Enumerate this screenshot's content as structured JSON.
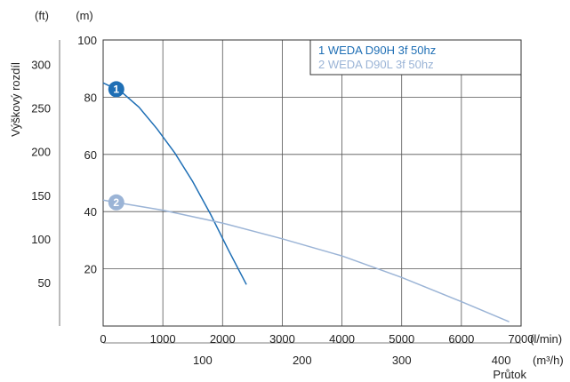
{
  "chart_data": {
    "type": "line",
    "ylabel": "Výškový rozdíl",
    "xlabel": "Průtok",
    "y_units": {
      "primary": "(m)",
      "secondary": "(ft)"
    },
    "x_units": {
      "primary": "(l/min)",
      "secondary": "(m³/h)"
    },
    "xlim": [
      0,
      7000
    ],
    "ylim": [
      0,
      100
    ],
    "grid": true,
    "legend_position": "top-right",
    "x_ticks": [
      "0",
      "1000",
      "2000",
      "3000",
      "4000",
      "5000",
      "6000",
      "7000"
    ],
    "y_ticks": [
      "20",
      "40",
      "60",
      "80",
      "100"
    ],
    "secondary_x_ticks": [
      "100",
      "200",
      "300",
      "400"
    ],
    "secondary_y_ticks": [
      "50",
      "100",
      "150",
      "200",
      "250",
      "300"
    ],
    "series": [
      {
        "name": "1 WEDA D90H 3f 50hz",
        "marker": "1",
        "color": "#1f6fb5",
        "x": [
          0,
          300,
          600,
          900,
          1200,
          1500,
          1800,
          2100,
          2400
        ],
        "y": [
          85,
          82,
          76.5,
          69,
          60.5,
          50.5,
          39,
          26.5,
          14.5
        ]
      },
      {
        "name": "2 WEDA D90L 3f 50hz",
        "marker": "2",
        "color": "#9bb4d6",
        "x": [
          0,
          200,
          1000,
          2000,
          3000,
          4000,
          5000,
          6000,
          6800
        ],
        "y": [
          44,
          43.3,
          40.5,
          36,
          30.5,
          24.5,
          17,
          8.5,
          1.5
        ]
      }
    ]
  }
}
